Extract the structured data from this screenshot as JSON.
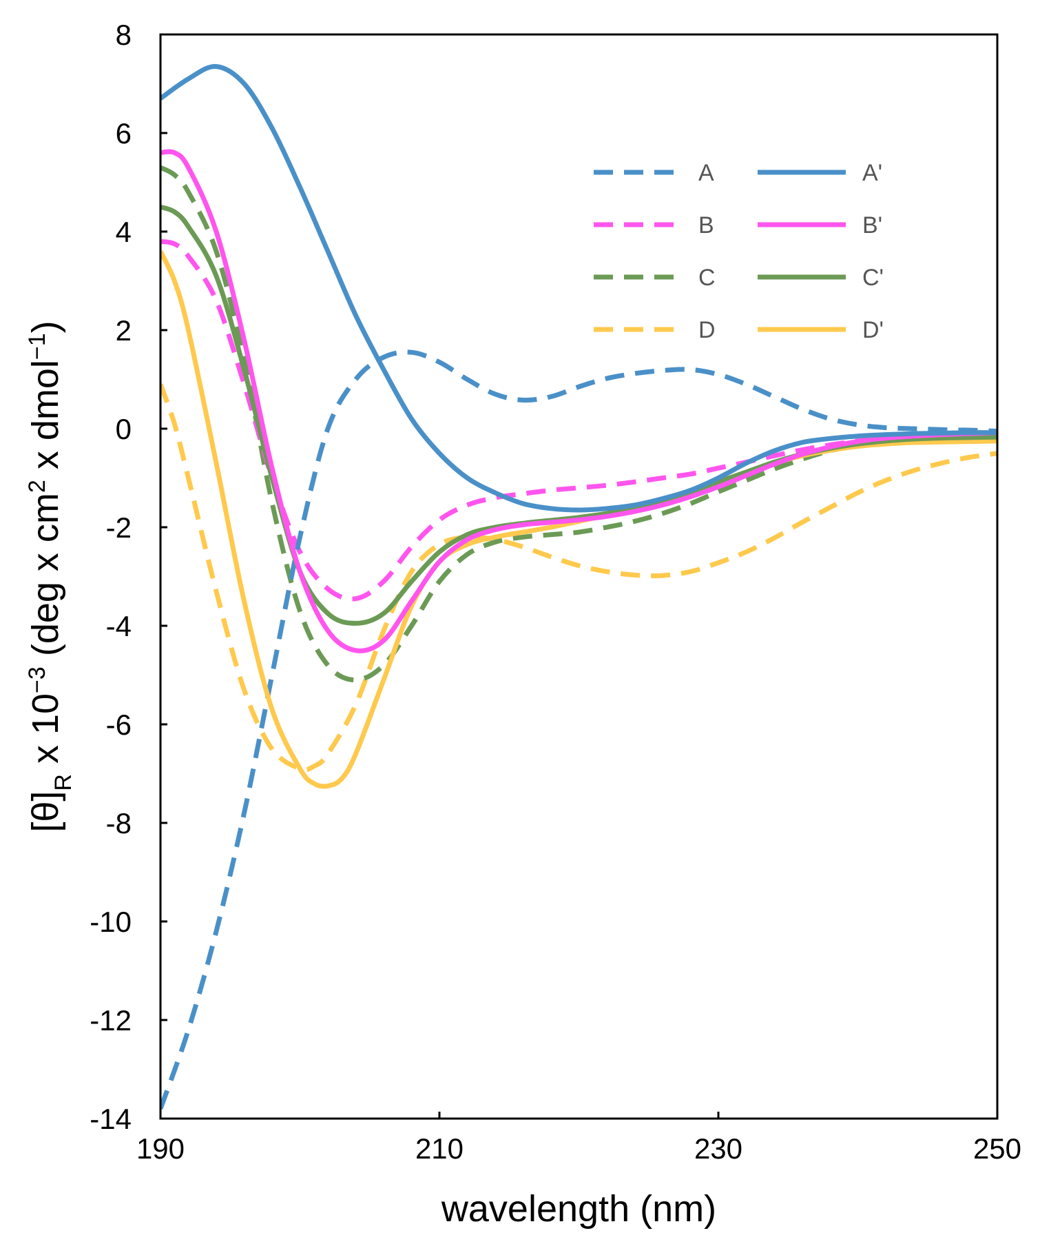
{
  "chart_data": {
    "type": "line",
    "title": "",
    "xlabel": "wavelength (nm)",
    "ylabel_parts": {
      "pre": "[θ]",
      "sub": "R",
      "mid": " x 10",
      "exp1": "−3",
      "mid2": " (deg x cm",
      "exp2": "2",
      "mid3": " x dmol",
      "exp3": "−1",
      "post": ")"
    },
    "xlim": [
      190,
      250
    ],
    "ylim": [
      -14,
      8
    ],
    "xticks": [
      190,
      210,
      230,
      250
    ],
    "yticks": [
      8,
      6,
      4,
      2,
      0,
      -2,
      -4,
      -6,
      -8,
      -10,
      -12,
      -14
    ],
    "grid": false,
    "legend_position": "top-right",
    "series": [
      {
        "name": "A",
        "color": "#4a90c8",
        "dashed": true,
        "x": [
          190,
          192,
          194,
          196,
          198,
          200,
          202,
          204,
          206,
          208,
          210,
          212,
          214,
          216,
          218,
          220,
          222,
          224,
          226,
          228,
          230,
          232,
          234,
          236,
          238,
          240,
          242,
          244,
          246,
          248,
          250
        ],
        "y": [
          -13.8,
          -12.2,
          -10.2,
          -7.8,
          -5.0,
          -2.2,
          0.0,
          1.0,
          1.45,
          1.55,
          1.35,
          1.0,
          0.7,
          0.58,
          0.65,
          0.85,
          1.02,
          1.12,
          1.18,
          1.2,
          1.1,
          0.9,
          0.65,
          0.4,
          0.2,
          0.08,
          0.02,
          0.0,
          -0.02,
          -0.03,
          -0.05
        ]
      },
      {
        "name": "A'",
        "color": "#4a90c8",
        "dashed": false,
        "x": [
          190,
          192,
          194,
          196,
          198,
          200,
          202,
          204,
          206,
          208,
          210,
          212,
          214,
          216,
          218,
          220,
          222,
          224,
          226,
          228,
          230,
          232,
          234,
          236,
          238,
          240,
          242,
          244,
          246,
          248,
          250
        ],
        "y": [
          6.7,
          7.1,
          7.35,
          7.0,
          6.1,
          4.9,
          3.6,
          2.3,
          1.2,
          0.2,
          -0.5,
          -1.0,
          -1.3,
          -1.52,
          -1.62,
          -1.65,
          -1.62,
          -1.55,
          -1.42,
          -1.25,
          -1.0,
          -0.7,
          -0.45,
          -0.28,
          -0.2,
          -0.15,
          -0.12,
          -0.1,
          -0.09,
          -0.08,
          -0.08
        ]
      },
      {
        "name": "B",
        "color": "#ff55ee",
        "dashed": true,
        "x": [
          190,
          191,
          192,
          194,
          196,
          198,
          200,
          202,
          204,
          206,
          208,
          210,
          212,
          214,
          216,
          218,
          220,
          222,
          224,
          226,
          228,
          230,
          232,
          234,
          236,
          238,
          240,
          242,
          244,
          246,
          248,
          250
        ],
        "y": [
          3.8,
          3.75,
          3.5,
          2.6,
          0.9,
          -1.0,
          -2.5,
          -3.25,
          -3.45,
          -3.1,
          -2.4,
          -1.85,
          -1.55,
          -1.4,
          -1.32,
          -1.25,
          -1.2,
          -1.15,
          -1.08,
          -1.0,
          -0.92,
          -0.8,
          -0.68,
          -0.55,
          -0.43,
          -0.33,
          -0.25,
          -0.19,
          -0.15,
          -0.12,
          -0.1,
          -0.08
        ]
      },
      {
        "name": "B'",
        "color": "#ff55ee",
        "dashed": false,
        "x": [
          190,
          191,
          192,
          194,
          196,
          198,
          200,
          202,
          204,
          206,
          208,
          210,
          212,
          214,
          216,
          218,
          220,
          222,
          224,
          226,
          228,
          230,
          232,
          234,
          236,
          238,
          240,
          242,
          244,
          246,
          248,
          250
        ],
        "y": [
          5.6,
          5.6,
          5.3,
          4.0,
          1.8,
          -0.8,
          -2.9,
          -4.1,
          -4.5,
          -4.3,
          -3.5,
          -2.7,
          -2.25,
          -2.05,
          -1.95,
          -1.9,
          -1.85,
          -1.78,
          -1.68,
          -1.55,
          -1.38,
          -1.18,
          -0.95,
          -0.72,
          -0.52,
          -0.37,
          -0.26,
          -0.19,
          -0.15,
          -0.12,
          -0.1,
          -0.08
        ]
      },
      {
        "name": "C",
        "color": "#6b9a55",
        "dashed": true,
        "x": [
          190,
          191,
          192,
          194,
          196,
          198,
          200,
          202,
          204,
          206,
          208,
          210,
          212,
          214,
          216,
          218,
          220,
          222,
          224,
          226,
          228,
          230,
          232,
          234,
          236,
          238,
          240,
          242,
          244,
          246,
          248,
          250
        ],
        "y": [
          5.3,
          5.15,
          4.8,
          3.6,
          1.4,
          -1.5,
          -3.7,
          -4.8,
          -5.1,
          -4.8,
          -4.0,
          -3.1,
          -2.55,
          -2.3,
          -2.2,
          -2.15,
          -2.1,
          -2.0,
          -1.88,
          -1.72,
          -1.52,
          -1.28,
          -1.05,
          -0.82,
          -0.62,
          -0.45,
          -0.33,
          -0.26,
          -0.22,
          -0.2,
          -0.19,
          -0.18
        ]
      },
      {
        "name": "C'",
        "color": "#6b9a55",
        "dashed": false,
        "x": [
          190,
          191,
          192,
          194,
          196,
          198,
          200,
          202,
          204,
          206,
          208,
          210,
          212,
          214,
          216,
          218,
          220,
          222,
          224,
          226,
          228,
          230,
          232,
          234,
          236,
          238,
          240,
          242,
          244,
          246,
          248,
          250
        ],
        "y": [
          4.5,
          4.4,
          4.1,
          3.1,
          1.2,
          -1.0,
          -2.9,
          -3.75,
          -3.95,
          -3.75,
          -3.1,
          -2.5,
          -2.15,
          -2.0,
          -1.92,
          -1.86,
          -1.8,
          -1.72,
          -1.6,
          -1.45,
          -1.28,
          -1.08,
          -0.88,
          -0.68,
          -0.52,
          -0.4,
          -0.31,
          -0.25,
          -0.21,
          -0.19,
          -0.18,
          -0.17
        ]
      },
      {
        "name": "D",
        "color": "#ffc94d",
        "dashed": true,
        "x": [
          190,
          191,
          192,
          194,
          196,
          198,
          200,
          201,
          202,
          204,
          206,
          208,
          210,
          212,
          214,
          216,
          218,
          220,
          222,
          224,
          226,
          228,
          230,
          232,
          234,
          236,
          238,
          240,
          242,
          244,
          246,
          248,
          250
        ],
        "y": [
          0.9,
          0.1,
          -1.0,
          -3.3,
          -5.3,
          -6.5,
          -6.9,
          -6.85,
          -6.6,
          -5.6,
          -4.1,
          -2.9,
          -2.35,
          -2.2,
          -2.25,
          -2.4,
          -2.6,
          -2.78,
          -2.9,
          -2.97,
          -2.98,
          -2.9,
          -2.72,
          -2.5,
          -2.22,
          -1.9,
          -1.6,
          -1.3,
          -1.05,
          -0.85,
          -0.7,
          -0.58,
          -0.5
        ]
      },
      {
        "name": "D'",
        "color": "#ffc94d",
        "dashed": false,
        "x": [
          190,
          191,
          192,
          194,
          196,
          198,
          200,
          201,
          202,
          203,
          204,
          206,
          208,
          210,
          212,
          214,
          216,
          218,
          220,
          222,
          224,
          226,
          228,
          230,
          232,
          234,
          236,
          238,
          240,
          242,
          244,
          246,
          248,
          250
        ],
        "y": [
          3.6,
          3.0,
          2.0,
          -0.7,
          -3.5,
          -5.7,
          -6.9,
          -7.2,
          -7.25,
          -7.1,
          -6.6,
          -5.1,
          -3.6,
          -2.7,
          -2.35,
          -2.2,
          -2.1,
          -2.0,
          -1.88,
          -1.75,
          -1.6,
          -1.45,
          -1.28,
          -1.08,
          -0.88,
          -0.7,
          -0.55,
          -0.44,
          -0.36,
          -0.31,
          -0.28,
          -0.27,
          -0.26,
          -0.25
        ]
      }
    ],
    "legend": [
      {
        "label": "A",
        "series": 0
      },
      {
        "label": "A'",
        "series": 1
      },
      {
        "label": "B",
        "series": 2
      },
      {
        "label": "B'",
        "series": 3
      },
      {
        "label": "C",
        "series": 4
      },
      {
        "label": "C'",
        "series": 5
      },
      {
        "label": "D",
        "series": 6
      },
      {
        "label": "D'",
        "series": 7
      }
    ]
  }
}
